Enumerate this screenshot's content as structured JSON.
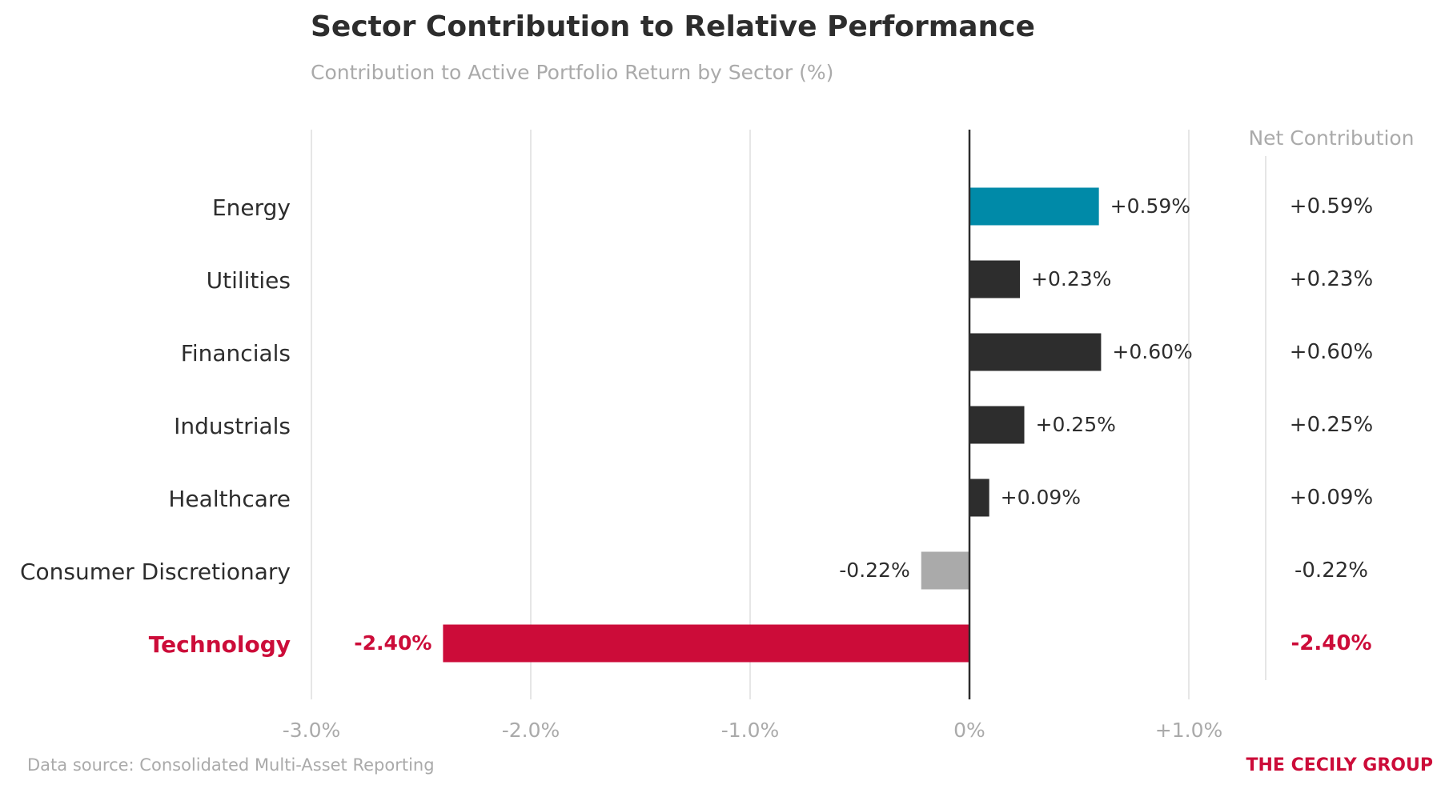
{
  "chart_data": {
    "type": "bar",
    "orientation": "horizontal",
    "title": "Sector Contribution to Relative Performance",
    "subtitle": "Contribution to Active Portfolio Return by Sector (%)",
    "table_header": "Net Contribution",
    "categories": [
      "Energy",
      "Utilities",
      "Financials",
      "Industrials",
      "Healthcare",
      "Consumer Discretionary",
      "Technology"
    ],
    "values": [
      0.59,
      0.23,
      0.6,
      0.25,
      0.09,
      -0.22,
      -2.4
    ],
    "value_labels": [
      "+0.59%",
      "+0.23%",
      "+0.60%",
      "+0.25%",
      "+0.09%",
      "-0.22%",
      "-2.40%"
    ],
    "xlim": [
      -3.0,
      1.0
    ],
    "xticks": [
      -3.0,
      -2.0,
      -1.0,
      0,
      1.0
    ],
    "xtick_labels": [
      "-3.0%",
      "-2.0%",
      "-1.0%",
      "0%",
      "+1.0%"
    ],
    "grid": true,
    "highlight": {
      "top": "Energy",
      "bottom": "Technology"
    },
    "colors": {
      "top": "#008aa8",
      "positive": "#2d2d2d",
      "negative": "#aaaaaa",
      "bottom": "#cc0c39",
      "text": "#2d2d2d",
      "muted": "#aaaaaa",
      "grid": "#e6e6e6",
      "zero_line": "#2d2d2d"
    }
  },
  "footer": {
    "source": "Data source: Consolidated Multi-Asset Reporting",
    "brand": "THE CECILY GROUP"
  }
}
